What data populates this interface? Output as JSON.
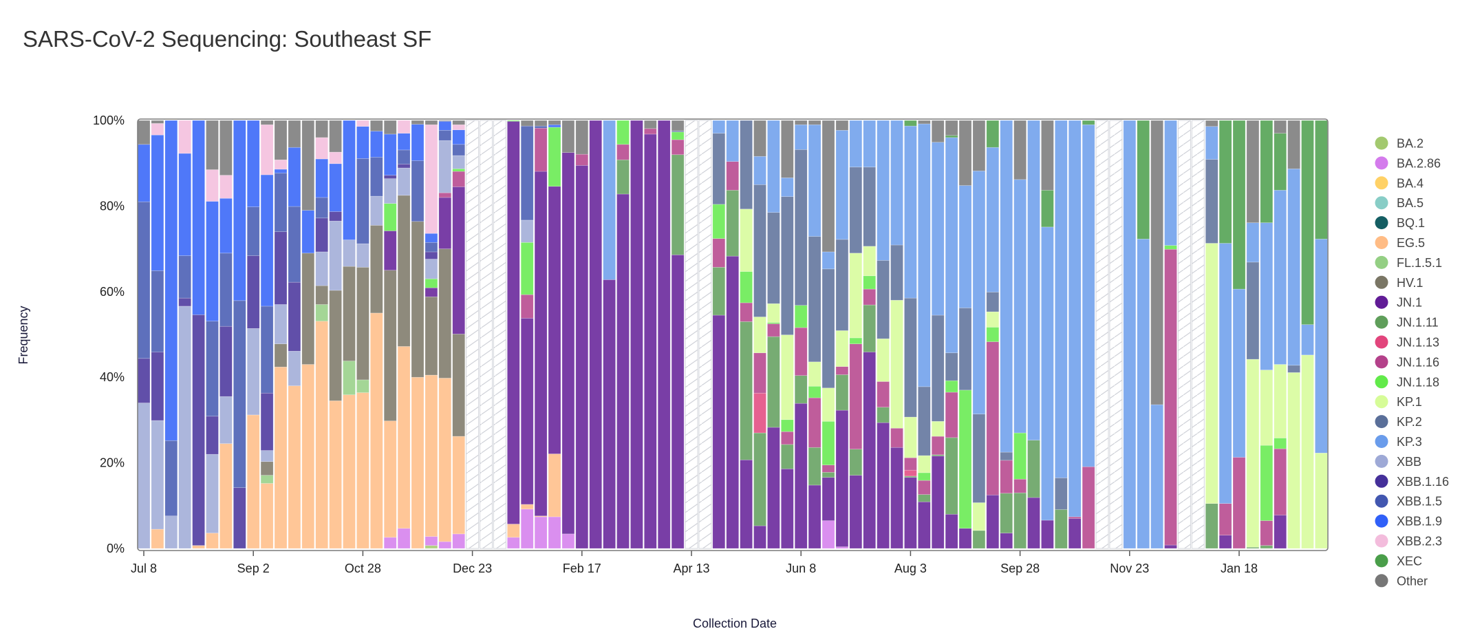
{
  "chart_data": {
    "type": "bar",
    "stacked": true,
    "title": "SARS-CoV-2 Sequencing: Southeast SF",
    "xlabel": "Collection Date",
    "ylabel": "Frequency",
    "ylim": [
      0,
      100
    ],
    "y_ticks": [
      "0%",
      "20%",
      "40%",
      "60%",
      "80%",
      "100%"
    ],
    "x_ticks": [
      {
        "week": 0,
        "label": "Jul 8"
      },
      {
        "week": 8,
        "label": "Sep 2"
      },
      {
        "week": 16,
        "label": "Oct 28"
      },
      {
        "week": 24,
        "label": "Dec 23"
      },
      {
        "week": 32,
        "label": "Feb 17"
      },
      {
        "week": 40,
        "label": "Apr 13"
      },
      {
        "week": 48,
        "label": "Jun 8"
      },
      {
        "week": 56,
        "label": "Aug 3"
      },
      {
        "week": 64,
        "label": "Sep 28"
      },
      {
        "week": 72,
        "label": "Nov 23"
      },
      {
        "week": 80,
        "label": "Jan 18"
      }
    ],
    "legend_position": "right",
    "lineages": [
      {
        "name": "BA.2",
        "color": "#a3c96f"
      },
      {
        "name": "BA.2.86",
        "color": "#d47bec"
      },
      {
        "name": "BA.4",
        "color": "#ffd166"
      },
      {
        "name": "BA.5",
        "color": "#88cdc6"
      },
      {
        "name": "BQ.1",
        "color": "#155e63"
      },
      {
        "name": "EG.5",
        "color": "#ffbc85"
      },
      {
        "name": "FL.1.5.1",
        "color": "#94cf84"
      },
      {
        "name": "HV.1",
        "color": "#7a7665"
      },
      {
        "name": "JN.1",
        "color": "#611c96"
      },
      {
        "name": "JN.1.11",
        "color": "#5f9e5a"
      },
      {
        "name": "JN.1.13",
        "color": "#e2457c"
      },
      {
        "name": "JN.1.16",
        "color": "#b4418a"
      },
      {
        "name": "JN.1.18",
        "color": "#62ea4a"
      },
      {
        "name": "KP.1",
        "color": "#d6fc98"
      },
      {
        "name": "KP.2",
        "color": "#5a6f99"
      },
      {
        "name": "KP.3",
        "color": "#6a9ceb"
      },
      {
        "name": "XBB",
        "color": "#9ea9d6"
      },
      {
        "name": "XBB.1.16",
        "color": "#45309a"
      },
      {
        "name": "XBB.1.5",
        "color": "#4257b0"
      },
      {
        "name": "XBB.1.9",
        "color": "#3060f8"
      },
      {
        "name": "XBB.2.3",
        "color": "#f3bcdc"
      },
      {
        "name": "XEC",
        "color": "#4a9e4a"
      },
      {
        "name": "Other",
        "color": "#777777"
      }
    ],
    "weeks": [
      {
        "XBB": 34,
        "XBB.1.16": 10.4,
        "XBB.1.5": 36.6,
        "XBB.1.9": 13.4,
        "Other": 5.6
      },
      {
        "EG.5": 4.5,
        "XBB": 25.4,
        "XBB.1.16": 16,
        "XBB.1.5": 19,
        "XBB.1.9": 31.7,
        "XBB.2.3": 2.7,
        "Other": 0.7
      },
      {
        "XBB": 7.6,
        "XBB.1.5": 17.6,
        "XBB.1.9": 74.8
      },
      {
        "XBB": 56.6,
        "XBB.1.16": 1.9,
        "XBB.1.5": 9.9,
        "XBB.1.9": 23.9,
        "XBB.2.3": 7.7
      },
      {
        "EG.5": 0.7,
        "XBB.1.16": 53.9,
        "XBB.1.9": 45.4
      },
      {
        "EG.5": 3.6,
        "XBB": 18.4,
        "XBB.1.16": 8.9,
        "XBB.1.5": 22.2,
        "XBB.1.9": 28,
        "XBB.2.3": 7.4,
        "Other": 11.5
      },
      {
        "EG.5": 24.5,
        "XBB": 11,
        "XBB.1.16": 16.4,
        "XBB.1.5": 17.1,
        "XBB.1.9": 12.8,
        "XBB.2.3": 5.4,
        "Other": 12.8
      },
      {
        "XBB.1.16": 14.2,
        "XBB.1.5": 43.7,
        "XBB.1.9": 42.1
      },
      {
        "EG.5": 31.2,
        "XBB": 20.2,
        "XBB.1.16": 17,
        "XBB.1.5": 11.4,
        "XBB.1.9": 20.2
      },
      {
        "EG.5": 15.2,
        "FL.1.5.1": 1.9,
        "HV.1": 3.2,
        "XBB": 2.6,
        "XBB.1.16": 13.4,
        "XBB.1.5": 20.3,
        "XBB.1.9": 30.7,
        "XBB.2.3": 11.7,
        "Other": 1
      },
      {
        "EG.5": 42.4,
        "HV.1": 5.4,
        "XBB": 9.2,
        "XBB.1.16": 17,
        "XBB.1.5": 13.7,
        "XBB.1.9": 0.9,
        "XBB.2.3": 2.2,
        "Other": 9.2
      },
      {
        "EG.5": 38,
        "XBB": 8.1,
        "XBB.1.16": 16.1,
        "XBB.1.5": 17.7,
        "XBB.1.9": 13.8,
        "Other": 6.3
      },
      {
        "EG.5": 43,
        "HV.1": 26,
        "XBB.1.9": 10,
        "Other": 21
      },
      {
        "EG.5": 53.1,
        "FL.1.5.1": 3.9,
        "HV.1": 4.4,
        "XBB": 7.9,
        "XBB.1.16": 7.9,
        "XBB.1.5": 4.8,
        "XBB.1.9": 9,
        "XBB.2.3": 5,
        "Other": 4
      },
      {
        "EG.5": 34.5,
        "HV.1": 25.8,
        "XBB": 16.2,
        "XBB.1.16": 2.2,
        "XBB.1.9": 11.2,
        "XBB.2.3": 2.7,
        "Other": 7.4
      },
      {
        "EG.5": 35.9,
        "FL.1.5.1": 7.9,
        "HV.1": 22.1,
        "XBB": 6.2,
        "XBB.1.9": 27.9
      },
      {
        "EG.5": 36.4,
        "FL.1.5.1": 3,
        "HV.1": 26.3,
        "XBB": 5.5,
        "XBB.1.5": 19.9,
        "XBB.1.9": 7.5,
        "XBB.2.3": 1.4
      },
      {
        "EG.5": 55,
        "HV.1": 20.5,
        "XBB": 6.8,
        "XBB.1.5": 9.1,
        "XBB.1.9": 6.1,
        "Other": 2.5
      },
      {
        "BA.2.86": 2.6,
        "EG.5": 27.2,
        "HV.1": 35.2,
        "JN.1": 9.2,
        "JN.1.18": 6.4,
        "XBB": 5.8,
        "XBB.1.16": 0.8,
        "XBB.1.9": 9.6,
        "Other": 3.2
      },
      {
        "BA.2.86": 4.7,
        "EG.5": 42.5,
        "HV.1": 35.3,
        "XBB": 6.4,
        "XBB.1.16": 0.9,
        "XBB.1.5": 3.3,
        "XBB.1.9": 3.9,
        "XBB.2.3": 3
      },
      {
        "EG.5": 40,
        "HV.1": 36.4,
        "XBB.1.5": 14.2,
        "XBB.1.9": 8.5,
        "Other": 0.9
      },
      {
        "BA.2": 0.7,
        "BA.2.86": 2.1,
        "EG.5": 37.7,
        "HV.1": 18.3,
        "JN.1": 2.1,
        "JN.1.18": 2.1,
        "XBB": 4.6,
        "XBB.1.16": 1.7,
        "XBB.1.5": 2.2,
        "XBB.1.9": 2.1,
        "XBB.2.3": 25.4,
        "Other": 1
      },
      {
        "BA.2.86": 1.6,
        "EG.5": 38.2,
        "HV.1": 30.2,
        "JN.1": 12,
        "JN.1.16": 1.1,
        "XBB": 12.2,
        "XBB.1.5": 2.4,
        "XBB.1.9": 2.1,
        "Other": 0.2
      },
      {
        "BA.2.86": 3.4,
        "EG.5": 22.8,
        "HV.1": 23.9,
        "JN.1": 34.4,
        "JN.1.16": 3.6,
        "JN.1.18": 0.6,
        "XBB": 3.1,
        "XBB.1.5": 2.6,
        "XBB.1.9": 3.4,
        "XBB.2.3": 1.2,
        "Other": 1
      },
      null,
      null,
      null,
      {
        "BA.2.86": 2.6,
        "EG.5": 3.1,
        "JN.1": 94.1,
        "JN.1.18": 0.2
      },
      {
        "BA.2.86": 9.2,
        "EG.5": 1.1,
        "JN.1": 43.5,
        "JN.1.16": 5.5,
        "JN.1.18": 12.2,
        "XBB": 5.2,
        "XBB.1.5": 22,
        "Other": 1.3
      },
      {
        "BA.2.86": 7.4,
        "EG.5": 0.2,
        "JN.1": 80.5,
        "JN.1.16": 10.1,
        "XBB.1.5": 0.5,
        "Other": 1.3
      },
      {
        "BA.2.86": 7.4,
        "EG.5": 14.7,
        "JN.1": 62.5,
        "JN.1.18": 13.8,
        "XBB.1.9": 0.6,
        "Other": 1
      },
      {
        "BA.2.86": 3.4,
        "JN.1": 89.1,
        "Other": 7.5
      },
      {
        "JN.1": 89.5,
        "JN.1.16": 2.6,
        "Other": 7.9
      },
      {
        "JN.1": 100
      },
      {
        "JN.1": 62.8,
        "KP.3": 37.2
      },
      {
        "JN.1": 82.8,
        "JN.1.11": 8,
        "JN.1.16": 3.6,
        "JN.1.18": 5.6
      },
      {
        "JN.1": 100
      },
      {
        "JN.1": 96.8,
        "JN.1.16": 1.3,
        "Other": 1.9
      },
      {
        "JN.1": 100
      },
      {
        "JN.1": 68.6,
        "JN.1.11": 23.4,
        "JN.1.16": 3.5,
        "JN.1.18": 1.8,
        "KP.2": 0.3,
        "Other": 2.4
      },
      null,
      null,
      {
        "JN.1": 54.5,
        "JN.1.11": 11.2,
        "JN.1.16": 6.7,
        "JN.1.18": 8,
        "KP.2": 16.6,
        "KP.3": 3
      },
      {
        "JN.1": 68.3,
        "JN.1.11": 15.4,
        "JN.1.16": 6.7,
        "KP.3": 9.6
      },
      {
        "JN.1": 20.7,
        "JN.1.11": 32.3,
        "JN.1.16": 4.4,
        "JN.1.18": 7.3,
        "KP.1": 14.6,
        "KP.2": 20.7
      },
      {
        "JN.1": 5.3,
        "JN.1.11": 21.7,
        "JN.1.13": 9.3,
        "JN.1.16": 9.4,
        "KP.1": 8.4,
        "KP.2": 30.9,
        "KP.3": 6.6,
        "Other": 8.4
      },
      {
        "JN.1": 28.3,
        "JN.1.11": 21.2,
        "JN.1.16": 3,
        "JN.1.18": 0.3,
        "KP.1": 4.4,
        "KP.2": 21.3,
        "KP.3": 21.5
      },
      {
        "JN.1": 18.6,
        "JN.1.11": 5.7,
        "JN.1.16": 3,
        "JN.1.18": 2.8,
        "KP.1": 19.8,
        "KP.2": 32.3,
        "KP.3": 4.4,
        "Other": 13.4
      },
      {
        "JN.1": 33.9,
        "JN.1.11": 6.5,
        "JN.1.16": 11.2,
        "JN.1.18": 5.2,
        "KP.2": 36.4,
        "KP.3": 5.8,
        "Other": 1
      },
      {
        "JN.1": 14.8,
        "JN.1.11": 8.8,
        "JN.1.16": 11.6,
        "JN.1.18": 2.7,
        "KP.1": 5.7,
        "KP.2": 29.3,
        "KP.3": 26.1,
        "Other": 1
      },
      {
        "BA.2.86": 6.5,
        "JN.1": 10.1,
        "JN.1.11": 1.2,
        "JN.1.16": 1.7,
        "JN.1.18": 10.2,
        "KP.1": 7.8,
        "KP.2": 27.8,
        "KP.3": 4,
        "Other": 30.7
      },
      {
        "BA.2.86": 0.4,
        "JN.1": 31.9,
        "JN.1.11": 8.3,
        "JN.1.16": 1.9,
        "KP.1": 8.4,
        "KP.2": 21.3,
        "KP.3": 25.5,
        "Other": 2.3
      },
      {
        "JN.1": 17.1,
        "JN.1.11": 6.1,
        "JN.1.16": 24.6,
        "JN.1.18": 1.4,
        "KP.1": 19.8,
        "KP.2": 20.1,
        "KP.3": 10.9
      },
      {
        "JN.1": 45.9,
        "JN.1.11": 11,
        "JN.1.16": 3.7,
        "JN.1.18": 3.1,
        "KP.1": 6.9,
        "KP.2": 18.5,
        "KP.3": 10.9
      },
      {
        "JN.1": 29.4,
        "JN.1.11": 3.6,
        "JN.1.16": 6,
        "KP.1": 10,
        "KP.2": 18.3,
        "KP.3": 32.7
      },
      {
        "JN.1": 23.6,
        "JN.1.16": 4.5,
        "KP.1": 29.9,
        "KP.2": 12.9,
        "KP.3": 29.1
      },
      {
        "JN.1": 16.6,
        "JN.1.11": 0.3,
        "JN.1.13": 1.4,
        "JN.1.16": 2.9,
        "KP.1": 9.5,
        "KP.2": 27.8,
        "KP.3": 40.2,
        "XEC": 1.3
      },
      {
        "JN.1": 10.9,
        "JN.1.11": 1.7,
        "JN.1.16": 3.3,
        "JN.1.18": 1.8,
        "KP.1": 4,
        "KP.2": 16.1,
        "KP.3": 61.4,
        "Other": 0.8
      },
      {
        "JN.1": 21.6,
        "JN.1.11": 0.3,
        "JN.1.16": 4.3,
        "KP.1": 3.5,
        "KP.2": 24.8,
        "KP.3": 40.4,
        "Other": 5.1
      },
      {
        "JN.1": 8,
        "JN.1.11": 17.9,
        "JN.1.16": 10.6,
        "JN.1.18": 2.7,
        "KP.2": 6.5,
        "KP.3": 50.3,
        "XEC": 0.5,
        "Other": 3.5
      },
      {
        "JN.1": 4.7,
        "JN.1.18": 32.3,
        "KP.2": 19.2,
        "KP.3": 28.6,
        "Other": 15.2
      },
      {
        "JN.1.11": 4.2,
        "KP.1": 6.5,
        "KP.2": 20.7,
        "KP.3": 56.8,
        "Other": 11.8
      },
      {
        "JN.1": 12.5,
        "JN.1.16": 35.8,
        "JN.1.18": 3.4,
        "KP.1": 3.6,
        "KP.2": 4.6,
        "KP.3": 33.8,
        "XEC": 6.3
      },
      {
        "JN.1": 3.6,
        "JN.1.11": 9.3,
        "JN.1.16": 7.7,
        "KP.2": 1.9,
        "KP.3": 77.5
      },
      {
        "JN.1.11": 13,
        "JN.1.16": 3.2,
        "JN.1.18": 10.8,
        "KP.3": 59.2,
        "Other": 13.8
      },
      {
        "JN.1": 11.9,
        "JN.1.11": 13.4,
        "KP.3": 74.7
      },
      {
        "JN.1": 6.6,
        "KP.3": 68.5,
        "XEC": 8.6,
        "Other": 16.3
      },
      {
        "JN.1.11": 9.1,
        "KP.2": 7.4,
        "KP.3": 83.5
      },
      {
        "JN.1": 7,
        "JN.1.16": 0.4,
        "KP.3": 92.6
      },
      {
        "JN.1.16": 19.1,
        "KP.3": 79.9,
        "XEC": 1
      },
      null,
      null,
      {
        "KP.3": 100
      },
      {
        "KP.3": 72.3,
        "XEC": 27.7
      },
      {
        "KP.3": 33.6,
        "Other": 66.4
      },
      {
        "JN.1": 0.8,
        "JN.1.16": 69.1,
        "JN.1.18": 0.9,
        "KP.3": 29.2
      },
      null,
      null,
      {
        "JN.1.11": 10.5,
        "KP.1": 60.8,
        "KP.2": 19.6,
        "KP.3": 7.7,
        "Other": 1.4
      },
      {
        "JN.1": 3.1,
        "JN.1.16": 7.4,
        "KP.3": 60.8,
        "XEC": 28.7
      },
      {
        "JN.1.16": 21.3,
        "KP.3": 39.3,
        "XEC": 39.4
      },
      {
        "JN.1.11": 0.3,
        "KP.1": 43.9,
        "KP.2": 22.7,
        "KP.3": 9.2,
        "Other": 23.9
      },
      {
        "JN.1.11": 0.7,
        "JN.1.16": 5.8,
        "JN.1.18": 17.6,
        "KP.1": 17.6,
        "KP.3": 34.4,
        "XEC": 23.9
      },
      {
        "JN.1": 7.8,
        "JN.1.16": 15.5,
        "JN.1.18": 2.5,
        "KP.1": 17.2,
        "KP.3": 40.7,
        "XEC": 13.3,
        "Other": 3
      },
      {
        "KP.1": 41.1,
        "KP.2": 1.7,
        "KP.3": 45.9,
        "Other": 11.3
      },
      {
        "KP.1": 45.2,
        "KP.3": 7.1,
        "XEC": 47.7
      },
      {
        "KP.1": 22.3,
        "KP.3": 50,
        "XEC": 27.7
      }
    ]
  }
}
